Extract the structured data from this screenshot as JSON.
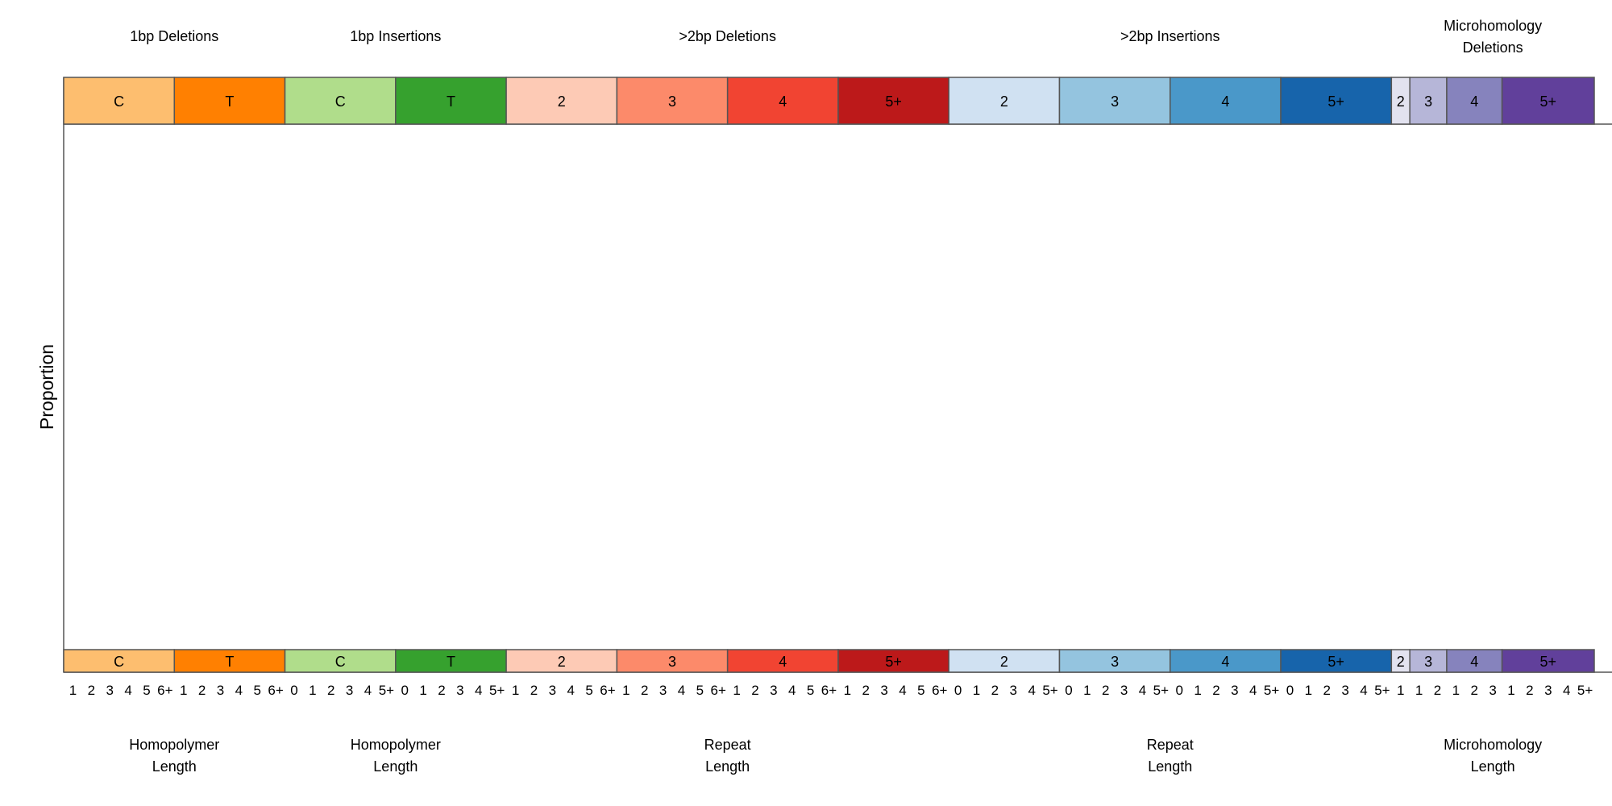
{
  "chart_data": {
    "type": "bar",
    "title": "",
    "xlabel": "",
    "ylabel": "Proportion",
    "ylim": [
      0,
      1
    ],
    "grid": false,
    "groups": [
      {
        "title": [
          "1bp Deletions"
        ],
        "bottom_label": [
          "Homopolymer",
          "Length"
        ],
        "subgroups": [
          {
            "label": "C",
            "color": "#fdbe6f",
            "ticks": [
              "1",
              "2",
              "3",
              "4",
              "5",
              "6+"
            ],
            "text_color": "#000000"
          },
          {
            "label": "T",
            "color": "#ff8001",
            "ticks": [
              "1",
              "2",
              "3",
              "4",
              "5",
              "6+"
            ],
            "text_color": "#000000"
          }
        ]
      },
      {
        "title": [
          "1bp Insertions"
        ],
        "bottom_label": [
          "Homopolymer",
          "Length"
        ],
        "subgroups": [
          {
            "label": "C",
            "color": "#b0dd8b",
            "ticks": [
              "0",
              "1",
              "2",
              "3",
              "4",
              "5+"
            ],
            "text_color": "#000000"
          },
          {
            "label": "T",
            "color": "#36a12e",
            "ticks": [
              "0",
              "1",
              "2",
              "3",
              "4",
              "5+"
            ],
            "text_color": "#000000"
          }
        ]
      },
      {
        "title": [
          ">2bp Deletions"
        ],
        "bottom_label": [
          "Repeat",
          "Length"
        ],
        "subgroups": [
          {
            "label": "2",
            "color": "#fdcab5",
            "ticks": [
              "1",
              "2",
              "3",
              "4",
              "5",
              "6+"
            ],
            "text_color": "#000000"
          },
          {
            "label": "3",
            "color": "#fc8a6a",
            "ticks": [
              "1",
              "2",
              "3",
              "4",
              "5",
              "6+"
            ],
            "text_color": "#000000"
          },
          {
            "label": "4",
            "color": "#f14432",
            "ticks": [
              "1",
              "2",
              "3",
              "4",
              "5",
              "6+"
            ],
            "text_color": "#000000"
          },
          {
            "label": "5+",
            "color": "#bc191a",
            "ticks": [
              "1",
              "2",
              "3",
              "4",
              "5",
              "6+"
            ],
            "text_color": "#000000"
          }
        ]
      },
      {
        "title": [
          ">2bp Insertions"
        ],
        "bottom_label": [
          "Repeat",
          "Length"
        ],
        "subgroups": [
          {
            "label": "2",
            "color": "#d0e1f2",
            "ticks": [
              "0",
              "1",
              "2",
              "3",
              "4",
              "5+"
            ],
            "text_color": "#000000"
          },
          {
            "label": "3",
            "color": "#94c4df",
            "ticks": [
              "0",
              "1",
              "2",
              "3",
              "4",
              "5+"
            ],
            "text_color": "#000000"
          },
          {
            "label": "4",
            "color": "#4a98c9",
            "ticks": [
              "0",
              "1",
              "2",
              "3",
              "4",
              "5+"
            ],
            "text_color": "#000000"
          },
          {
            "label": "5+",
            "color": "#1764ab",
            "ticks": [
              "0",
              "1",
              "2",
              "3",
              "4",
              "5+"
            ],
            "text_color": "#000000"
          }
        ]
      },
      {
        "title": [
          "Microhomology",
          "Deletions"
        ],
        "bottom_label": [
          "Microhomology",
          "Length"
        ],
        "subgroups": [
          {
            "label": "2",
            "color": "#e2e2ef",
            "ticks": [
              "1"
            ],
            "text_color": "#000000"
          },
          {
            "label": "3",
            "color": "#b6b6d8",
            "ticks": [
              "1",
              "2"
            ],
            "text_color": "#000000"
          },
          {
            "label": "4",
            "color": "#8683bd",
            "ticks": [
              "1",
              "2",
              "3"
            ],
            "text_color": "#000000"
          },
          {
            "label": "5+",
            "color": "#61409b",
            "ticks": [
              "1",
              "2",
              "3",
              "4",
              "5+"
            ],
            "text_color": "#000000"
          }
        ]
      }
    ],
    "series": [
      {
        "values": [
          0,
          0,
          0,
          0,
          0,
          0,
          0,
          0,
          0,
          0,
          0,
          0,
          0,
          0,
          0,
          0,
          0,
          0,
          0,
          0,
          0,
          0,
          0,
          0,
          0,
          0,
          0,
          0,
          0,
          0,
          0,
          0,
          0,
          0,
          0,
          0,
          0,
          0,
          0,
          0,
          0,
          0,
          0,
          0,
          0,
          0,
          0,
          0,
          0,
          0,
          0,
          0,
          0,
          0,
          0,
          0,
          0,
          0,
          0,
          0,
          0,
          0,
          0,
          0,
          0,
          0,
          0,
          0,
          0,
          0,
          0,
          0,
          0,
          0,
          0,
          0,
          0,
          0,
          0,
          0,
          0,
          0,
          0
        ]
      }
    ]
  }
}
